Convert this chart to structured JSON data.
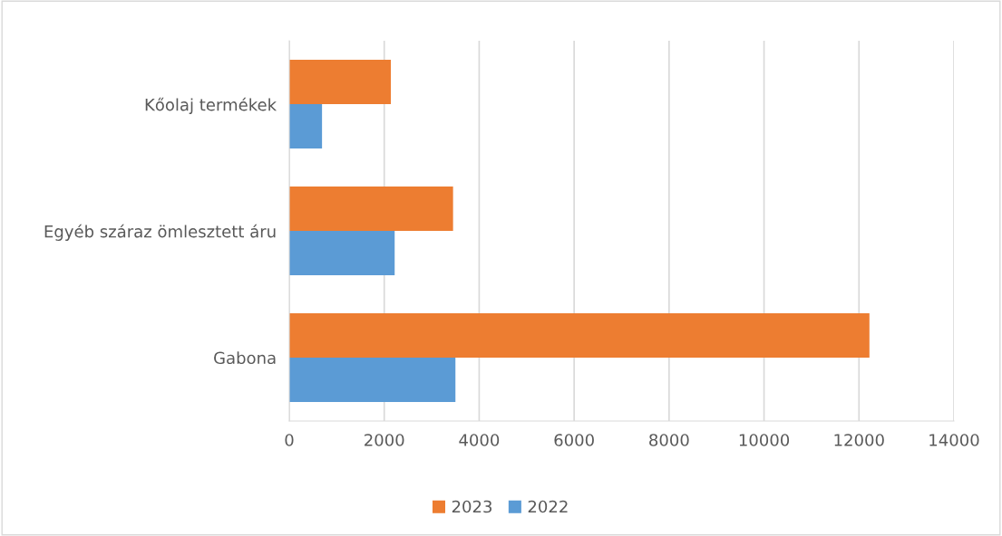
{
  "chart_data": {
    "type": "bar",
    "orientation": "horizontal",
    "categories": [
      "Kőolaj termékek",
      "Egyéb száraz ömlesztett áru",
      "Gabona"
    ],
    "series": [
      {
        "name": "2023",
        "color": "#ed7d31",
        "values": [
          2140,
          3450,
          12220
        ]
      },
      {
        "name": "2022",
        "color": "#5b9bd5",
        "values": [
          690,
          2220,
          3500
        ]
      }
    ],
    "xlim": [
      0,
      14000
    ],
    "xticks": [
      0,
      2000,
      4000,
      6000,
      8000,
      10000,
      12000,
      14000
    ],
    "grid": "x",
    "legend": "bottom"
  }
}
